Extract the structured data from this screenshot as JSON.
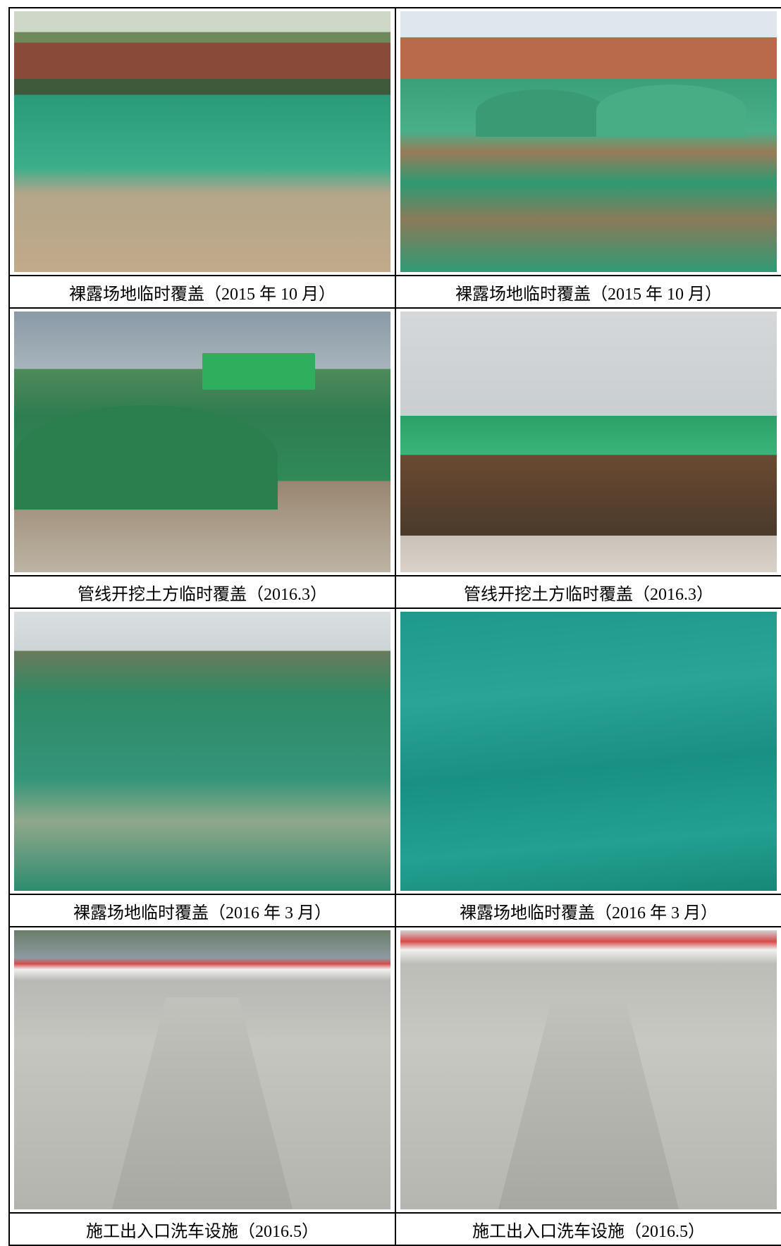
{
  "rows": [
    {
      "left": {
        "caption": "裸露场地临时覆盖（2015 年 10 月）",
        "scene": "bare-site-fence-netting"
      },
      "right": {
        "caption": "裸露场地临时覆盖（2015 年 10 月）",
        "scene": "bare-site-bridge-netting"
      }
    },
    {
      "left": {
        "caption": "管线开挖土方临时覆盖（2016.3）",
        "scene": "pipeline-earth-cover"
      },
      "right": {
        "caption": "管线开挖土方临时覆盖（2016.3）",
        "scene": "pipeline-trench-cover"
      }
    },
    {
      "left": {
        "caption": "裸露场地临时覆盖（2016 年 3 月）",
        "scene": "bare-site-scaffold-netting"
      },
      "right": {
        "caption": "裸露场地临时覆盖（2016 年 3 月）",
        "scene": "bare-site-netting-closeup"
      }
    },
    {
      "left": {
        "caption": "施工出入口洗车设施（2016.5）",
        "scene": "wash-facility-ramp-van"
      },
      "right": {
        "caption": "施工出入口洗车设施（2016.5）",
        "scene": "wash-facility-ramp-car"
      }
    }
  ],
  "colors": {
    "netting": "#2aa07a",
    "border": "#000000"
  }
}
